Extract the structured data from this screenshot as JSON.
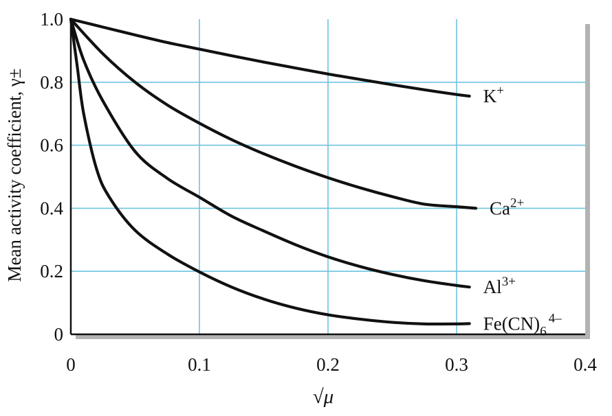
{
  "chart_data": {
    "type": "line",
    "title": "",
    "xlabel": "√μ",
    "ylabel": "Mean activity coefficient, γ±",
    "xlim": [
      0,
      0.4
    ],
    "ylim": [
      0,
      1.0
    ],
    "x_ticks": [
      {
        "value": 0,
        "label": "0"
      },
      {
        "value": 0.1,
        "label": "0.1"
      },
      {
        "value": 0.2,
        "label": "0.2"
      },
      {
        "value": 0.3,
        "label": "0.3"
      },
      {
        "value": 0.4,
        "label": "0.4"
      }
    ],
    "y_ticks": [
      {
        "value": 0,
        "label": "0"
      },
      {
        "value": 0.2,
        "label": "0.2"
      },
      {
        "value": 0.4,
        "label": "0.4"
      },
      {
        "value": 0.6,
        "label": "0.6"
      },
      {
        "value": 0.8,
        "label": "0.8"
      },
      {
        "value": 1.0,
        "label": "1.0"
      }
    ],
    "grid": true,
    "grid_color": "#6ec3dd",
    "line_color": "#111111",
    "series": [
      {
        "name": "K+",
        "label_base": "K",
        "label_sup": "+",
        "label_sub": "",
        "x": [
          0,
          0.025,
          0.05,
          0.075,
          0.1,
          0.125,
          0.15,
          0.175,
          0.2,
          0.225,
          0.25,
          0.275,
          0.3,
          0.31
        ],
        "y": [
          1.0,
          0.975,
          0.95,
          0.926,
          0.905,
          0.884,
          0.864,
          0.845,
          0.826,
          0.809,
          0.792,
          0.776,
          0.761,
          0.756
        ]
      },
      {
        "name": "Ca2+",
        "label_base": "Ca",
        "label_sup": "2+",
        "label_sub": "",
        "x": [
          0,
          0.025,
          0.05,
          0.075,
          0.1,
          0.125,
          0.15,
          0.175,
          0.2,
          0.225,
          0.25,
          0.275,
          0.3,
          0.315
        ],
        "y": [
          1.0,
          0.89,
          0.8,
          0.728,
          0.67,
          0.618,
          0.573,
          0.533,
          0.497,
          0.465,
          0.437,
          0.413,
          0.405,
          0.4
        ]
      },
      {
        "name": "Al3+",
        "label_base": "Al",
        "label_sup": "3+",
        "label_sub": "",
        "x": [
          0,
          0.01,
          0.025,
          0.05,
          0.075,
          0.1,
          0.125,
          0.15,
          0.175,
          0.2,
          0.225,
          0.25,
          0.275,
          0.3,
          0.31
        ],
        "y": [
          1.0,
          0.87,
          0.74,
          0.58,
          0.495,
          0.435,
          0.375,
          0.328,
          0.284,
          0.246,
          0.215,
          0.19,
          0.17,
          0.155,
          0.15
        ]
      },
      {
        "name": "Fe(CN)64−",
        "label_base": "Fe(CN)",
        "label_sup": "4–",
        "label_sub": "6",
        "x": [
          0,
          0.005,
          0.01,
          0.02,
          0.03,
          0.05,
          0.075,
          0.1,
          0.125,
          0.15,
          0.175,
          0.2,
          0.225,
          0.25,
          0.275,
          0.3,
          0.31
        ],
        "y": [
          1.0,
          0.85,
          0.7,
          0.525,
          0.435,
          0.33,
          0.255,
          0.198,
          0.15,
          0.112,
          0.083,
          0.062,
          0.048,
          0.038,
          0.033,
          0.033,
          0.034
        ]
      }
    ]
  }
}
